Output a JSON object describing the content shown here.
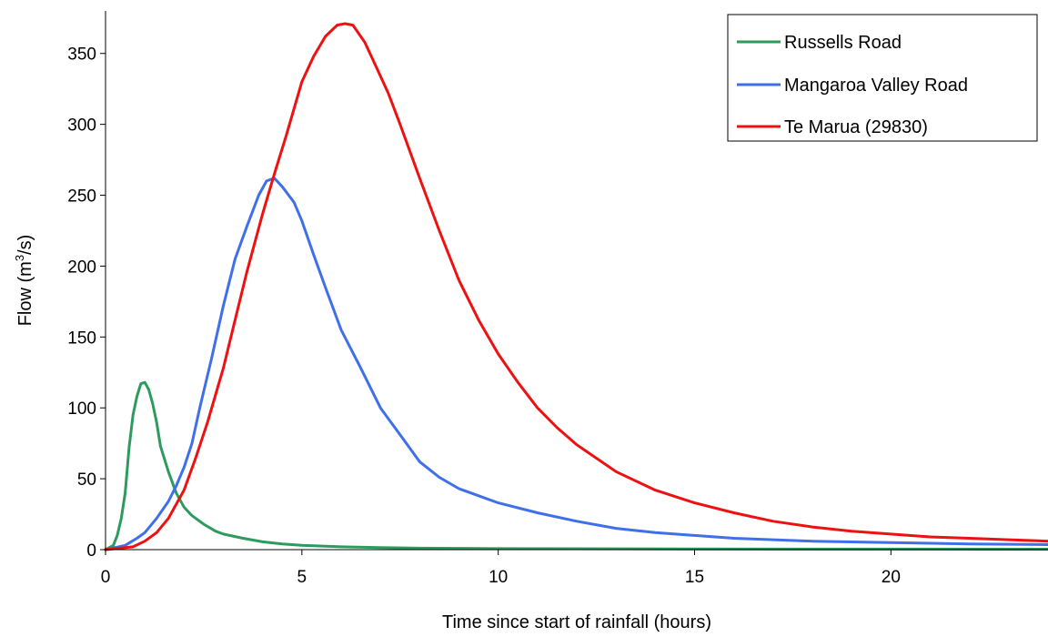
{
  "chart_data": {
    "type": "line",
    "title": "",
    "xlabel": "Time since start of rainfall (hours)",
    "ylabel_main": "Flow (m",
    "ylabel_sup": "3",
    "ylabel_tail": "/s)",
    "xlim": [
      0,
      24
    ],
    "ylim": [
      0,
      380
    ],
    "xticks": [
      0,
      5,
      10,
      15,
      20
    ],
    "xtick_labels": [
      "0",
      "5",
      "10",
      "15",
      "20"
    ],
    "yticks": [
      0,
      50,
      100,
      150,
      200,
      250,
      300,
      350
    ],
    "ytick_labels": [
      "0",
      "50",
      "100",
      "150",
      "200",
      "250",
      "300",
      "350"
    ],
    "grid": false,
    "legend_position": "top-right",
    "series": [
      {
        "name": "Russells Road",
        "color": "#2e9b5e",
        "x": [
          0,
          0.2,
          0.3,
          0.4,
          0.5,
          0.6,
          0.7,
          0.8,
          0.9,
          1.0,
          1.1,
          1.2,
          1.3,
          1.4,
          1.6,
          1.8,
          2.0,
          2.2,
          2.5,
          2.8,
          3.0,
          3.5,
          4.0,
          4.5,
          5.0,
          6.0,
          7.0,
          8.0,
          10.0,
          15.0,
          20.0,
          24.0
        ],
        "y": [
          0,
          3,
          10,
          22,
          40,
          72,
          95,
          108,
          117,
          118,
          113,
          103,
          90,
          73,
          55,
          40,
          30,
          24,
          18,
          13,
          11,
          8,
          5.5,
          4,
          3,
          2,
          1.5,
          1,
          0.7,
          0.5,
          0.4,
          0.3
        ]
      },
      {
        "name": "Mangaroa Valley Road",
        "color": "#3f6fea",
        "x": [
          0,
          0.5,
          0.8,
          1.0,
          1.3,
          1.6,
          1.8,
          2.0,
          2.2,
          2.4,
          2.7,
          3.0,
          3.3,
          3.6,
          3.9,
          4.1,
          4.3,
          4.5,
          4.8,
          5.0,
          5.3,
          5.6,
          6.0,
          6.5,
          7.0,
          7.5,
          8.0,
          8.5,
          9.0,
          9.5,
          10.0,
          11.0,
          12.0,
          13.0,
          14.0,
          15.0,
          16.0,
          17.0,
          18.0,
          20.0,
          22.0,
          24.0
        ],
        "y": [
          0,
          3,
          8,
          12,
          22,
          34,
          45,
          58,
          75,
          100,
          135,
          172,
          205,
          228,
          250,
          260,
          262,
          256,
          245,
          232,
          208,
          185,
          155,
          128,
          100,
          81,
          62,
          51,
          43,
          38,
          33,
          26,
          20,
          15,
          12,
          10,
          8,
          7,
          6,
          5,
          4,
          3.5
        ]
      },
      {
        "name": "Te Marua (29830)",
        "color": "#ee1111",
        "x": [
          0,
          0.7,
          1.0,
          1.3,
          1.6,
          2.0,
          2.3,
          2.6,
          3.0,
          3.3,
          3.6,
          4.0,
          4.3,
          4.6,
          5.0,
          5.3,
          5.6,
          5.9,
          6.1,
          6.3,
          6.6,
          6.9,
          7.2,
          7.5,
          8.0,
          8.5,
          9.0,
          9.5,
          10.0,
          10.5,
          11.0,
          11.5,
          12.0,
          13.0,
          14.0,
          15.0,
          16.0,
          17.0,
          18.0,
          19.0,
          20.0,
          21.0,
          22.0,
          23.0,
          24.0
        ],
        "y": [
          0,
          2,
          6,
          12,
          22,
          42,
          65,
          90,
          128,
          162,
          196,
          237,
          265,
          292,
          330,
          348,
          362,
          370,
          371,
          370,
          358,
          340,
          322,
          300,
          262,
          225,
          190,
          162,
          138,
          118,
          100,
          86,
          74,
          55,
          42,
          33,
          26,
          20,
          16,
          13,
          11,
          9,
          8,
          7,
          6
        ]
      }
    ]
  }
}
